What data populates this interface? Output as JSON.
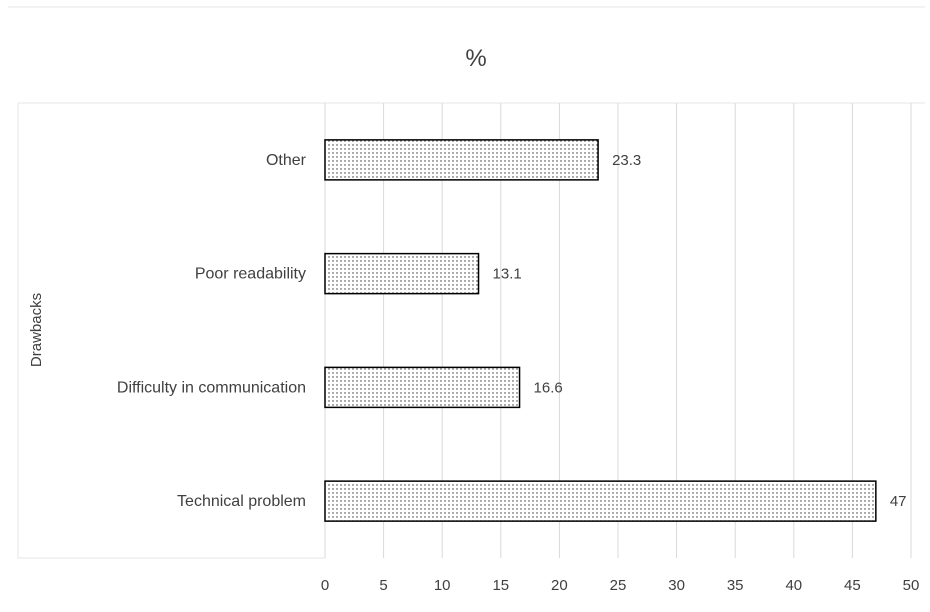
{
  "chart_data": {
    "type": "bar",
    "orientation": "horizontal",
    "title": "%",
    "ylabel": "Drawbacks",
    "xlabel": "",
    "categories": [
      "Technical problem",
      "Difficulty in communication",
      "Poor readability",
      "Other"
    ],
    "values": [
      47,
      16.6,
      13.1,
      23.3
    ],
    "value_labels": [
      "47",
      "16.6",
      "13.1",
      "23.3"
    ],
    "xlim": [
      0,
      50
    ],
    "xticks": [
      "0",
      "5",
      "10",
      "15",
      "20",
      "25",
      "30",
      "35",
      "40",
      "45",
      "50"
    ],
    "grid": "vertical",
    "fill": "dotted-pattern",
    "colors": {
      "bar_edge": "#000000",
      "dots": "#333333",
      "text": "#404040",
      "grid": "#d9d9d9"
    }
  }
}
